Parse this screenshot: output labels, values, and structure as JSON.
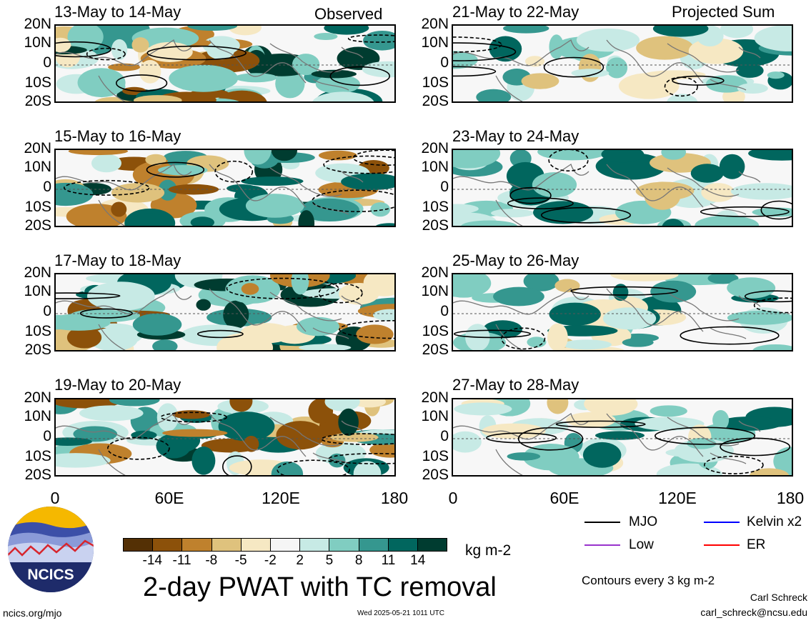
{
  "observed_tag": "Observed",
  "projected_tag": "Projected Sum",
  "panels_left": [
    {
      "title": "13-May to 14-May"
    },
    {
      "title": "15-May to 16-May"
    },
    {
      "title": "17-May to 18-May"
    },
    {
      "title": "19-May to 20-May"
    }
  ],
  "panels_right": [
    {
      "title": "21-May to 22-May"
    },
    {
      "title": "23-May to 24-May"
    },
    {
      "title": "25-May to 26-May"
    },
    {
      "title": "27-May to 28-May"
    }
  ],
  "lat_labels": [
    "20N",
    "10N",
    "0",
    "10S",
    "20S"
  ],
  "lon_labels": [
    "0",
    "60E",
    "120E",
    "180"
  ],
  "colorbar": {
    "colors": [
      "#543005",
      "#8c510a",
      "#bf812d",
      "#dfc27d",
      "#f6e8c3",
      "#f5f5f5",
      "#c7eae5",
      "#80cdc1",
      "#35978f",
      "#01665e",
      "#003c30"
    ],
    "ticks": [
      "-14",
      "-11",
      "-8",
      "-5",
      "-2",
      "2",
      "5",
      "8",
      "11",
      "14"
    ],
    "units": "kg m-2"
  },
  "title": "2-day PWAT with TC removal",
  "legend": [
    {
      "label": "MJO",
      "color": "#000000"
    },
    {
      "label": "Kelvin x2",
      "color": "#0000ff"
    },
    {
      "label": "Low",
      "color": "#9933cc"
    },
    {
      "label": "ER",
      "color": "#ff0000"
    }
  ],
  "contour_note": "Contours every 3 kg m-2",
  "author": "Carl Schreck",
  "email": "carl_schreck@ncsu.edu",
  "site": "ncics.org/mjo",
  "timestamp": "Wed 2025-05-21 1011 UTC",
  "logo_text": "NCICS"
}
